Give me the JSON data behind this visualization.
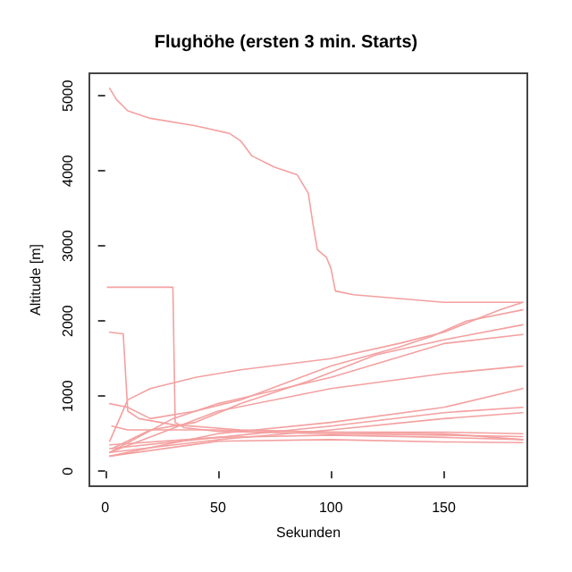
{
  "chart_data": {
    "type": "line",
    "title": "Flughöhe (ersten 3 min. Starts)",
    "xlabel": "Sekunden",
    "ylabel": "Altitude [m]",
    "xlim": [
      -7,
      187
    ],
    "ylim": [
      -200,
      5300
    ],
    "xticks": [
      0,
      50,
      100,
      150
    ],
    "yticks": [
      0,
      1000,
      2000,
      3000,
      4000,
      5000
    ],
    "grid": false,
    "marker": "none",
    "line_style": "solid",
    "series": [
      {
        "color": "#f4a0a0",
        "x": [
          2,
          5,
          10,
          20,
          40,
          55,
          60,
          65,
          75,
          85,
          90,
          92,
          94,
          98,
          100,
          102,
          110,
          130,
          150,
          185
        ],
        "values": [
          5100,
          4950,
          4800,
          4700,
          4600,
          4500,
          4400,
          4200,
          4050,
          3950,
          3700,
          3300,
          2950,
          2850,
          2700,
          2400,
          2350,
          2300,
          2250,
          2250
        ]
      },
      {
        "color": "#f4a0a0",
        "x": [
          1,
          30,
          31,
          35,
          50,
          100,
          150,
          185
        ],
        "values": [
          2450,
          2450,
          650,
          580,
          530,
          500,
          480,
          460
        ]
      },
      {
        "color": "#f4a0a0",
        "x": [
          2,
          8,
          10,
          15,
          30,
          60,
          100,
          150,
          185
        ],
        "values": [
          1850,
          1830,
          800,
          700,
          620,
          550,
          520,
          500,
          420
        ]
      },
      {
        "color": "#f4a0a0",
        "x": [
          2,
          10,
          20,
          40,
          60,
          100,
          130,
          150,
          175,
          185
        ],
        "values": [
          400,
          950,
          1100,
          1250,
          1350,
          1500,
          1700,
          1850,
          2150,
          2250
        ]
      },
      {
        "color": "#f4a0a0",
        "x": [
          2,
          10,
          20,
          40,
          60,
          100,
          130,
          145,
          160,
          185
        ],
        "values": [
          900,
          850,
          700,
          800,
          950,
          1400,
          1650,
          1800,
          2000,
          2150
        ]
      },
      {
        "color": "#f4a0a0",
        "x": [
          3,
          20,
          40,
          60,
          90,
          120,
          150,
          185
        ],
        "values": [
          300,
          550,
          650,
          900,
          1200,
          1550,
          1750,
          1950
        ]
      },
      {
        "color": "#f4a0a0",
        "x": [
          2,
          30,
          50,
          100,
          150,
          185
        ],
        "values": [
          250,
          700,
          900,
          1250,
          1700,
          1820
        ]
      },
      {
        "color": "#f4a0a0",
        "x": [
          2,
          50,
          100,
          150,
          185
        ],
        "values": [
          250,
          800,
          1100,
          1300,
          1400
        ]
      },
      {
        "color": "#f4a0a0",
        "x": [
          2,
          50,
          100,
          150,
          185
        ],
        "values": [
          200,
          500,
          650,
          850,
          1100
        ]
      },
      {
        "color": "#f4a0a0",
        "x": [
          2,
          50,
          100,
          150,
          185
        ],
        "values": [
          300,
          450,
          600,
          780,
          850
        ]
      },
      {
        "color": "#f4a0a0",
        "x": [
          2,
          50,
          100,
          150,
          185
        ],
        "values": [
          250,
          420,
          550,
          700,
          780
        ]
      },
      {
        "color": "#f4a0a0",
        "x": [
          3,
          10,
          50,
          100,
          150,
          185
        ],
        "values": [
          600,
          550,
          550,
          520,
          520,
          500
        ]
      },
      {
        "color": "#f4a0a0",
        "x": [
          2,
          50,
          100,
          150,
          185
        ],
        "values": [
          350,
          450,
          480,
          450,
          420
        ]
      },
      {
        "color": "#f4a0a0",
        "x": [
          2,
          50,
          100,
          150,
          185
        ],
        "values": [
          200,
          400,
          420,
          390,
          380
        ]
      }
    ]
  }
}
